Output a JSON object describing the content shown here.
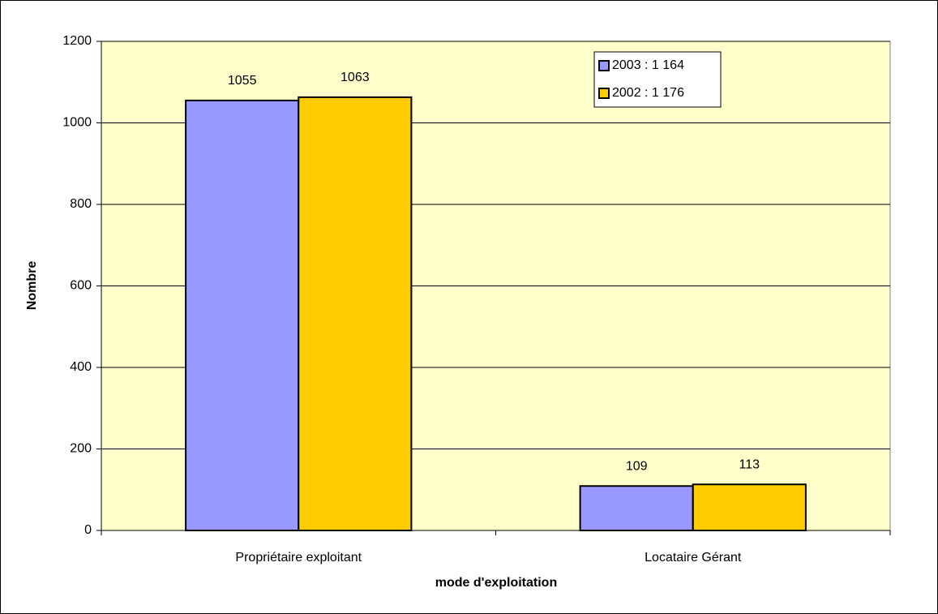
{
  "chart_data": {
    "type": "bar",
    "categories": [
      "Propriétaire exploitant",
      "Locataire Gérant"
    ],
    "series": [
      {
        "name": "2003 : 1 164",
        "color": "#9999ff",
        "values": [
          1055,
          109
        ]
      },
      {
        "name": "2002 : 1 176",
        "color": "#ffcc00",
        "values": [
          1063,
          113
        ]
      }
    ],
    "xlabel": "mode d'exploitation",
    "ylabel": "Nombre",
    "ylim": [
      0,
      1200
    ],
    "yticks": [
      0,
      200,
      400,
      600,
      800,
      1000,
      1200
    ],
    "grid": true,
    "legend": "upper right",
    "legend_text_color": "#ff0000",
    "plot_background": "#ffffcc"
  }
}
